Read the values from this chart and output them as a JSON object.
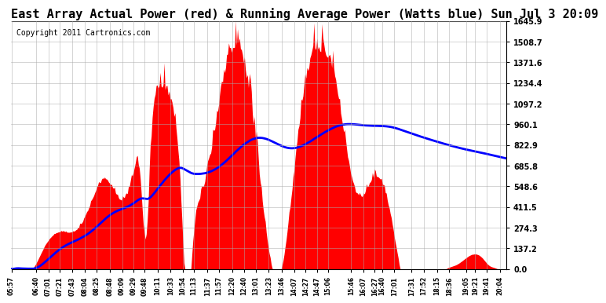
{
  "title": "East Array Actual Power (red) & Running Average Power (Watts blue) Sun Jul 3 20:09",
  "copyright": "Copyright 2011 Cartronics.com",
  "ylabel_right": [
    "1645.9",
    "1508.7",
    "1371.6",
    "1234.4",
    "1097.2",
    "960.1",
    "822.9",
    "685.8",
    "548.6",
    "411.5",
    "274.3",
    "137.2",
    "0.0"
  ],
  "ymax": 1645.9,
  "ymin": 0.0,
  "yticks": [
    0.0,
    137.2,
    274.3,
    411.5,
    548.6,
    685.8,
    822.9,
    960.1,
    1097.2,
    1234.4,
    1371.6,
    1508.7,
    1645.9
  ],
  "xtick_labels": [
    "05:57",
    "06:40",
    "07:01",
    "07:21",
    "07:43",
    "08:04",
    "08:25",
    "08:48",
    "09:09",
    "09:29",
    "09:48",
    "10:11",
    "10:33",
    "10:54",
    "11:13",
    "11:37",
    "11:57",
    "12:20",
    "12:40",
    "13:01",
    "13:23",
    "13:46",
    "14:07",
    "14:27",
    "14:47",
    "15:06",
    "15:46",
    "16:07",
    "16:27",
    "16:40",
    "17:01",
    "17:31",
    "17:52",
    "18:15",
    "18:36",
    "19:05",
    "19:21",
    "19:41",
    "20:04"
  ],
  "bg_color": "#ffffff",
  "fill_color": "red",
  "line_color": "blue",
  "grid_color": "#aaaaaa",
  "title_fontsize": 11,
  "copyright_fontsize": 7
}
